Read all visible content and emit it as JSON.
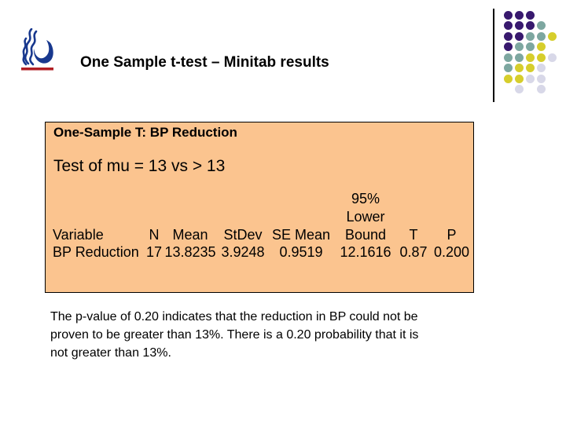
{
  "slide": {
    "title": "One Sample t-test – Minitab results"
  },
  "minitab": {
    "heading": "One-Sample T: BP Reduction",
    "test_line": "Test of mu = 13 vs > 13",
    "table": {
      "bound_pre_headers": [
        "95%",
        "Lower"
      ],
      "headers": [
        "Variable",
        "N",
        "Mean",
        "StDev",
        "SE Mean",
        "Bound",
        "T",
        "P"
      ],
      "row": [
        "BP Reduction",
        "17",
        "13.8235",
        "3.9248",
        "0.9519",
        "12.1616",
        "0.87",
        "0.200"
      ]
    }
  },
  "note": {
    "lines": [
      "The p-value of 0.20 indicates that the reduction in BP could not be",
      "proven to be greater than 13%. There is a 0.20 probability that it is",
      "not greater than 13%."
    ]
  },
  "colors": {
    "box_bg": "#FBC48F",
    "box_border": "#000000",
    "title_text": "#000000",
    "dot_purple": "#38196E",
    "dot_teal": "#7DA7A0",
    "dot_yellow": "#D6CE2C",
    "dot_lavender": "#D8D8E8",
    "divider_line": "#000000",
    "logo_navy": "#18388E",
    "logo_red": "#B01E23"
  },
  "decoration": {
    "dot_grid": [
      "PPP..",
      "PPPT.",
      "PPTTY",
      "PTTY.",
      "TTYYL",
      "TYYL.",
      "YYLL.",
      ".L.L."
    ]
  }
}
